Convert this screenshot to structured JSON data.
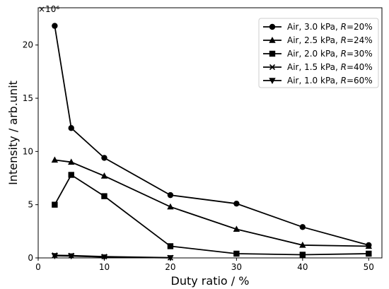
{
  "chart_data": {
    "type": "line",
    "xlabel": "Duty ratio / %",
    "ylabel": "Intensity / arb.unit",
    "y_multiplier": "×10⁶",
    "xlim": [
      0,
      52
    ],
    "ylim": [
      0,
      23.5
    ],
    "x_ticks": [
      0,
      10,
      20,
      30,
      40,
      50
    ],
    "y_ticks": [
      0,
      5,
      10,
      15,
      20
    ],
    "grid": false,
    "legend_placement": "top-right",
    "series": [
      {
        "name_prefix": "Air, 3.0 kPa, ",
        "name_var": "R",
        "name_suffix": "=20%",
        "marker": "circle",
        "x": [
          2.5,
          5,
          10,
          20,
          30,
          40,
          50
        ],
        "y": [
          21.8,
          12.2,
          9.4,
          5.9,
          5.1,
          2.9,
          1.2
        ]
      },
      {
        "name_prefix": "Air, 2.5 kPa, ",
        "name_var": "R",
        "name_suffix": "=24%",
        "marker": "triangle-up",
        "x": [
          2.5,
          5,
          10,
          20,
          30,
          40,
          50
        ],
        "y": [
          9.2,
          9.0,
          7.7,
          4.8,
          2.7,
          1.2,
          1.1
        ]
      },
      {
        "name_prefix": "Air, 2.0 kPa, ",
        "name_var": "R",
        "name_suffix": "=30%",
        "marker": "square",
        "x": [
          2.5,
          5,
          10,
          20,
          30,
          40,
          50
        ],
        "y": [
          5.0,
          7.8,
          5.8,
          1.1,
          0.4,
          0.3,
          0.4
        ]
      },
      {
        "name_prefix": "Air, 1.5 kPa, ",
        "name_var": "R",
        "name_suffix": "=40%",
        "marker": "x",
        "x": [
          2.5,
          5,
          10,
          20
        ],
        "y": [
          0.25,
          0.22,
          0.12,
          0.02
        ]
      },
      {
        "name_prefix": "Air, 1.0 kPa, ",
        "name_var": "R",
        "name_suffix": "=60%",
        "marker": "triangle-down",
        "x": [
          2.5,
          5,
          10,
          20
        ],
        "y": [
          0.2,
          0.18,
          0.08,
          0.01
        ]
      }
    ]
  }
}
